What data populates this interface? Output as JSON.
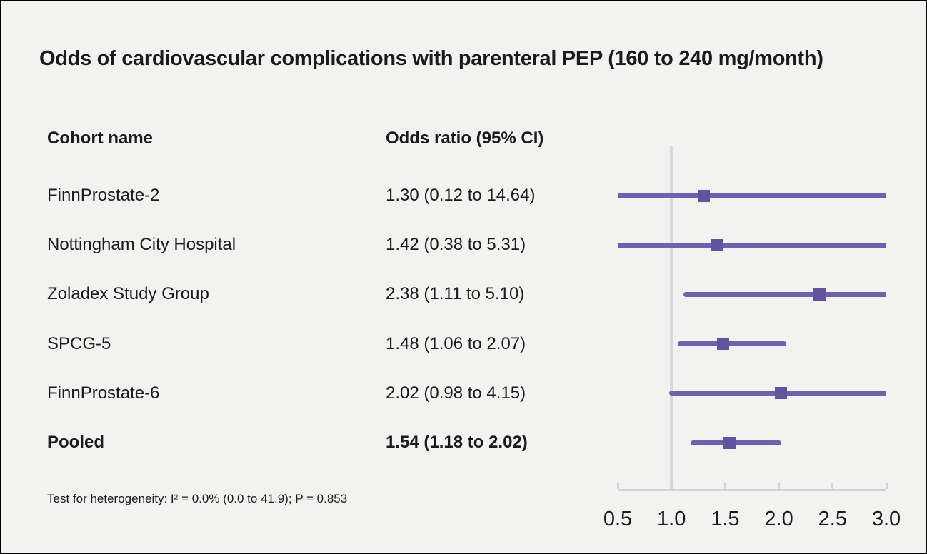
{
  "chart_data": {
    "type": "forest",
    "title": "Odds of cardiovascular complications with parenteral PEP (160 to 240 mg/month)",
    "columns": [
      "Cohort name",
      "Odds ratio (95% CI)"
    ],
    "rows": [
      {
        "name": "FinnProstate-2",
        "label": "1.30 (0.12 to 14.64)",
        "or": 1.3,
        "lo": 0.12,
        "hi": 14.64,
        "bold": false
      },
      {
        "name": "Nottingham City Hospital",
        "label": "1.42 (0.38 to 5.31)",
        "or": 1.42,
        "lo": 0.38,
        "hi": 5.31,
        "bold": false
      },
      {
        "name": "Zoladex Study Group",
        "label": "2.38 (1.11 to 5.10)",
        "or": 2.38,
        "lo": 1.11,
        "hi": 5.1,
        "bold": false
      },
      {
        "name": "SPCG-5",
        "label": "1.48 (1.06 to 2.07)",
        "or": 1.48,
        "lo": 1.06,
        "hi": 2.07,
        "bold": false
      },
      {
        "name": "FinnProstate-6",
        "label": "2.02 (0.98 to 4.15)",
        "or": 2.02,
        "lo": 0.98,
        "hi": 4.15,
        "bold": false
      },
      {
        "name": "Pooled",
        "label": "1.54 (1.18 to 2.02)",
        "or": 1.54,
        "lo": 1.18,
        "hi": 2.02,
        "bold": true
      }
    ],
    "axis": {
      "min": 0.5,
      "max": 3.0,
      "ticks": [
        0.5,
        1.0,
        1.5,
        2.0,
        2.5,
        3.0
      ],
      "tick_labels": [
        "0.5",
        "1.0",
        "1.5",
        "2.0",
        "2.5",
        "3.0"
      ],
      "reference_line": 1.0,
      "scale": "linear"
    },
    "footnote": "Test for heterogeneity: I² = 0.0% (0.0 to 41.9); P = 0.853",
    "colors": {
      "ci_line": "#6e61ad",
      "marker": "#63539f",
      "reference_line": "#d5dade",
      "axis": "#ccd3d9",
      "background": "#f2f2f0",
      "text": "#1b1b1b"
    }
  }
}
